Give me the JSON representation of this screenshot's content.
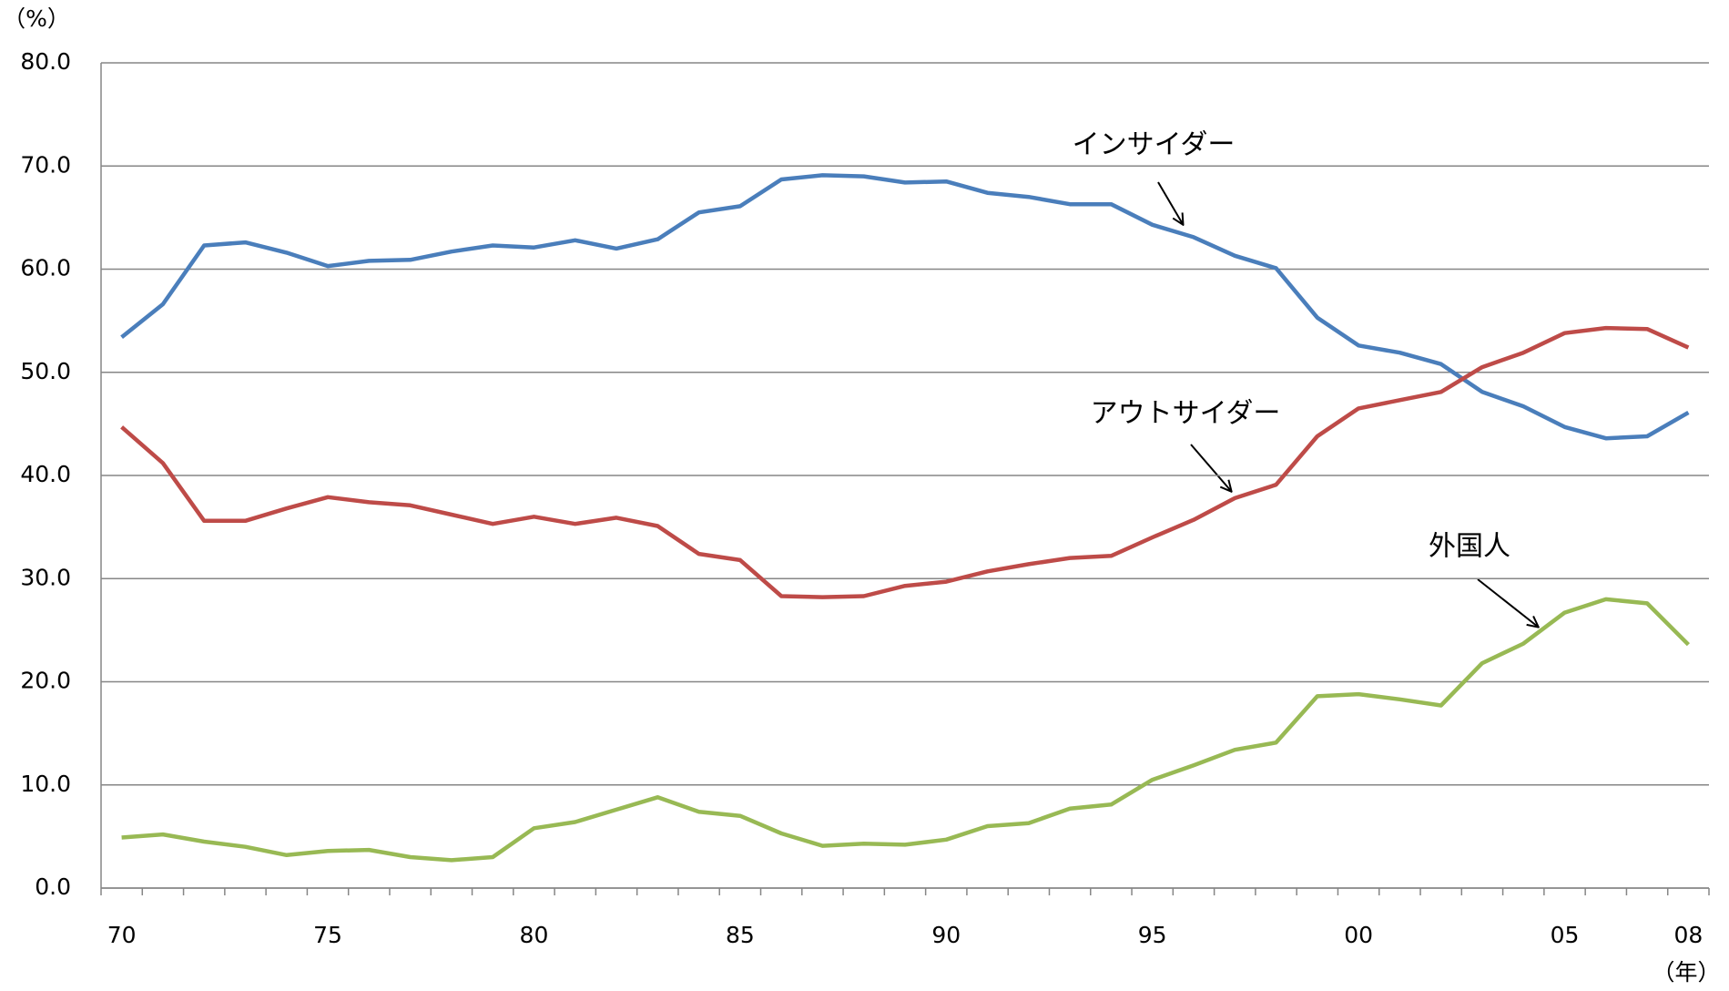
{
  "chart_data": {
    "type": "line",
    "y_unit": "（%）",
    "x_unit": "（年）",
    "categories": [
      "70",
      null,
      null,
      null,
      null,
      "75",
      null,
      null,
      null,
      null,
      "80",
      null,
      null,
      null,
      null,
      "85",
      null,
      null,
      null,
      null,
      "90",
      null,
      null,
      null,
      null,
      "95",
      null,
      null,
      null,
      null,
      "00",
      null,
      null,
      null,
      null,
      "05",
      null,
      null,
      "08"
    ],
    "series": [
      {
        "name": "インサイダー",
        "color": "#4a7ebb",
        "values": [
          53.4,
          56.6,
          62.3,
          62.6,
          61.6,
          60.3,
          60.8,
          60.9,
          61.7,
          62.3,
          62.1,
          62.8,
          62.0,
          62.9,
          65.5,
          66.1,
          68.7,
          69.1,
          69.0,
          68.4,
          68.5,
          67.4,
          67.0,
          66.3,
          66.3,
          64.3,
          63.1,
          61.3,
          60.1,
          55.3,
          52.6,
          51.9,
          50.8,
          48.1,
          46.7,
          44.7,
          43.6,
          43.8,
          46.1
        ]
      },
      {
        "name": "アウトサイダー",
        "color": "#be4b48",
        "values": [
          44.7,
          41.2,
          35.6,
          35.6,
          36.8,
          37.9,
          37.4,
          37.1,
          36.2,
          35.3,
          36.0,
          35.3,
          35.9,
          35.1,
          32.4,
          31.8,
          28.3,
          28.2,
          28.3,
          29.3,
          29.7,
          30.7,
          31.4,
          32.0,
          32.2,
          34.0,
          35.7,
          37.8,
          39.1,
          43.8,
          46.5,
          47.3,
          48.1,
          50.5,
          51.9,
          53.8,
          54.3,
          54.2,
          52.4
        ]
      },
      {
        "name": "外国人",
        "color": "#98b954",
        "values": [
          4.9,
          5.2,
          4.5,
          4.0,
          3.2,
          3.6,
          3.7,
          3.0,
          2.7,
          3.0,
          5.8,
          6.4,
          7.6,
          8.8,
          7.4,
          7.0,
          5.3,
          4.1,
          4.3,
          4.2,
          4.7,
          6.0,
          6.3,
          7.7,
          8.1,
          10.5,
          11.9,
          13.4,
          14.1,
          18.6,
          18.8,
          18.3,
          17.7,
          21.8,
          23.7,
          26.7,
          28.0,
          27.6,
          23.6
        ]
      }
    ],
    "ylim": [
      0,
      80
    ],
    "yticks": [
      {
        "value": 0,
        "label": "0.0"
      },
      {
        "value": 10,
        "label": "10.0"
      },
      {
        "value": 20,
        "label": "20.0"
      },
      {
        "value": 30,
        "label": "30.0"
      },
      {
        "value": 40,
        "label": "40.0"
      },
      {
        "value": 50,
        "label": "50.0"
      },
      {
        "value": 60,
        "label": "60.0"
      },
      {
        "value": 70,
        "label": "70.0"
      },
      {
        "value": 80,
        "label": "80.0"
      }
    ],
    "grid": true
  }
}
